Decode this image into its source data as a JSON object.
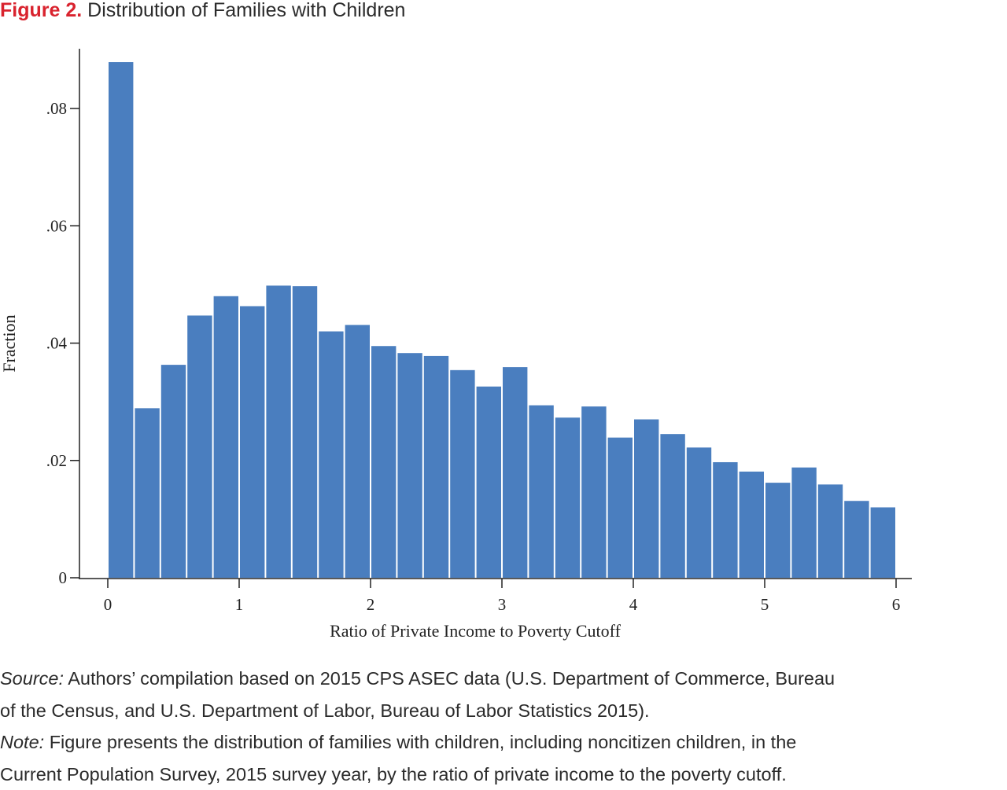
{
  "figure": {
    "label": "Figure 2.",
    "title": "Distribution of Families with Children",
    "colors": {
      "label": "#d9232e",
      "bar": "#4a7ebf",
      "axis": "#222222"
    }
  },
  "chart_data": {
    "type": "bar",
    "title": "",
    "xlabel": "Ratio of Private Income to Poverty Cutoff",
    "ylabel": "Fraction",
    "xlim": [
      0,
      6
    ],
    "ylim": [
      0,
      0.09
    ],
    "bin_width": 0.2,
    "bin_starts": [
      0,
      0.2,
      0.4,
      0.6,
      0.8,
      1.0,
      1.2,
      1.4,
      1.6,
      1.8,
      2.0,
      2.2,
      2.4,
      2.6,
      2.8,
      3.0,
      3.2,
      3.4,
      3.6,
      3.8,
      4.0,
      4.2,
      4.4,
      4.6,
      4.8,
      5.0,
      5.2,
      5.4,
      5.6,
      5.8
    ],
    "values": [
      0.0879,
      0.0289,
      0.0363,
      0.0447,
      0.048,
      0.0463,
      0.0498,
      0.0497,
      0.042,
      0.0431,
      0.0395,
      0.0383,
      0.0378,
      0.0354,
      0.0326,
      0.0359,
      0.0294,
      0.0273,
      0.0292,
      0.0239,
      0.027,
      0.0245,
      0.0222,
      0.0197,
      0.0181,
      0.0162,
      0.0188,
      0.0159,
      0.0131,
      0.012
    ],
    "x_ticks": [
      0,
      1,
      2,
      3,
      4,
      5,
      6
    ],
    "x_tick_labels": [
      "0",
      "1",
      "2",
      "3",
      "4",
      "5",
      "6"
    ],
    "y_ticks": [
      0,
      0.02,
      0.04,
      0.06,
      0.08
    ],
    "y_tick_labels": [
      "0",
      ".02",
      ".04",
      ".06",
      ".08"
    ],
    "grid": false,
    "legend": "none"
  },
  "notes": {
    "source_label": "Source:",
    "source_line1": "Authors’ compilation based on 2015 CPS ASEC data (U.S. Department of Commerce, Bureau",
    "source_line2": "of the Census, and U.S. Department of Labor, Bureau of Labor Statistics 2015).",
    "note_label": "Note:",
    "note_line1": "Figure presents the distribution of families with children, including noncitizen children, in the",
    "note_line2": "Current Population Survey, 2015 survey year, by the ratio of private income to the poverty cutoff."
  }
}
